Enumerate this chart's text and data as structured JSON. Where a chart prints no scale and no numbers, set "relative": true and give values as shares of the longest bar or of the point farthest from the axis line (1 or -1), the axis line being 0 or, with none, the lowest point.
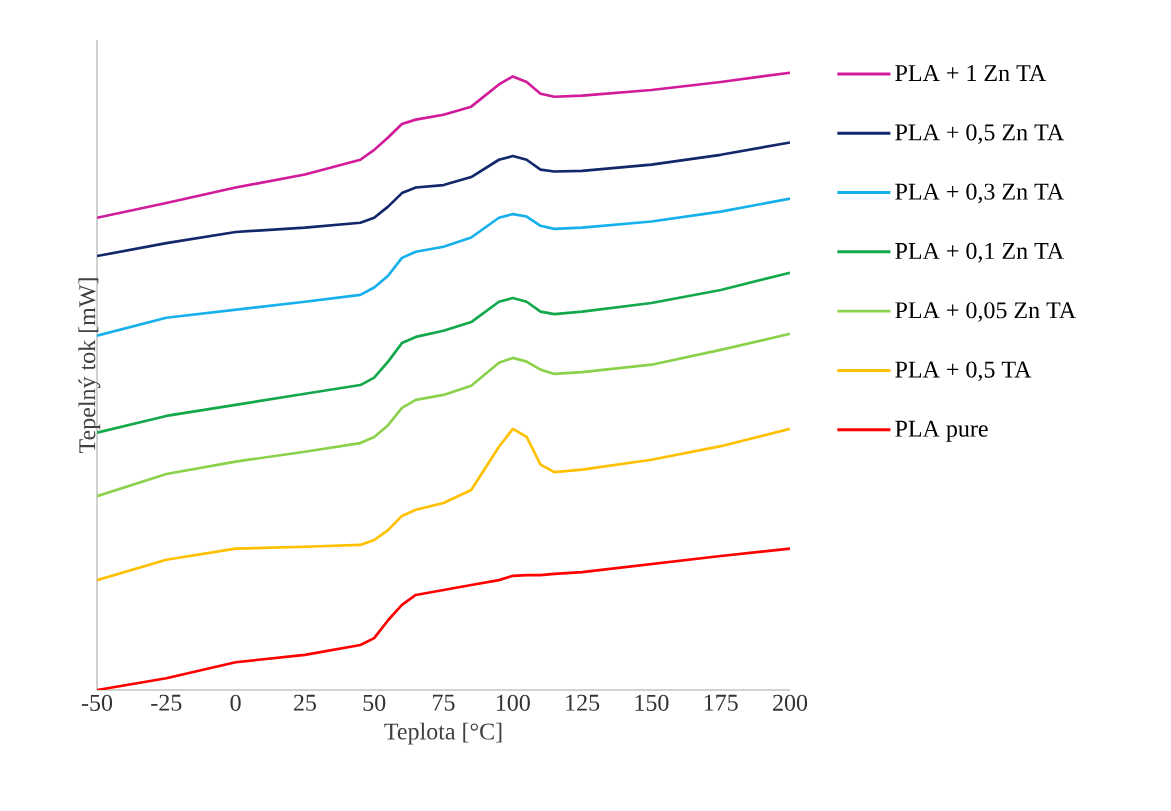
{
  "chart_data": {
    "type": "line",
    "relative": true,
    "xlabel": "Teplota [°C]",
    "ylabel": "Tepelný tok [mW]",
    "x": [
      -50,
      -25,
      0,
      25,
      45,
      50,
      55,
      60,
      65,
      75,
      85,
      95,
      100,
      105,
      110,
      115,
      125,
      150,
      175,
      200
    ],
    "xlim": [
      -50,
      200
    ],
    "xticks": [
      -50,
      -25,
      0,
      25,
      50,
      75,
      100,
      125,
      150,
      175,
      200
    ],
    "tick_labels": "x",
    "grid": false,
    "legend": "right",
    "marker": "none",
    "line_style": "solid",
    "series": [
      {
        "name": "PLA + 1 Zn TA",
        "color": "#d11b9b",
        "values": [
          0.765,
          0.789,
          0.814,
          0.835,
          0.859,
          0.875,
          0.895,
          0.917,
          0.924,
          0.932,
          0.945,
          0.981,
          0.994,
          0.985,
          0.966,
          0.961,
          0.963,
          0.972,
          0.985,
          1
        ]
      },
      {
        "name": "PLA + 0,5 Zn TA",
        "color": "#13286b",
        "values": [
          0.703,
          0.724,
          0.742,
          0.749,
          0.757,
          0.765,
          0.783,
          0.805,
          0.814,
          0.818,
          0.831,
          0.859,
          0.865,
          0.859,
          0.843,
          0.84,
          0.841,
          0.851,
          0.867,
          0.887
        ]
      },
      {
        "name": "PLA + 0,3 Zn TA",
        "color": "#16b0ec",
        "values": [
          0.574,
          0.603,
          0.616,
          0.629,
          0.64,
          0.652,
          0.671,
          0.7,
          0.71,
          0.718,
          0.733,
          0.765,
          0.771,
          0.767,
          0.752,
          0.747,
          0.749,
          0.759,
          0.775,
          0.796
        ]
      },
      {
        "name": "PLA + 0,1 Zn TA",
        "color": "#13a84a",
        "values": [
          0.417,
          0.444,
          0.462,
          0.48,
          0.494,
          0.506,
          0.532,
          0.562,
          0.572,
          0.582,
          0.596,
          0.629,
          0.635,
          0.629,
          0.613,
          0.609,
          0.613,
          0.627,
          0.648,
          0.676
        ]
      },
      {
        "name": "PLA + 0,05 Zn TA",
        "color": "#8bd14b",
        "values": [
          0.314,
          0.35,
          0.37,
          0.386,
          0.4,
          0.41,
          0.429,
          0.457,
          0.47,
          0.478,
          0.493,
          0.53,
          0.538,
          0.532,
          0.519,
          0.512,
          0.515,
          0.527,
          0.551,
          0.577
        ]
      },
      {
        "name": "PLA + 0,5 TA",
        "color": "#ffc000",
        "values": [
          0.178,
          0.211,
          0.229,
          0.232,
          0.235,
          0.243,
          0.259,
          0.282,
          0.292,
          0.303,
          0.324,
          0.394,
          0.423,
          0.41,
          0.365,
          0.353,
          0.357,
          0.373,
          0.395,
          0.423
        ]
      },
      {
        "name": "PLA pure",
        "color": "#ff0000",
        "values": [
          0,
          0.019,
          0.045,
          0.057,
          0.073,
          0.084,
          0.113,
          0.138,
          0.154,
          0.162,
          0.17,
          0.178,
          0.185,
          0.186,
          0.186,
          0.188,
          0.191,
          0.204,
          0.217,
          0.229
        ]
      }
    ]
  }
}
